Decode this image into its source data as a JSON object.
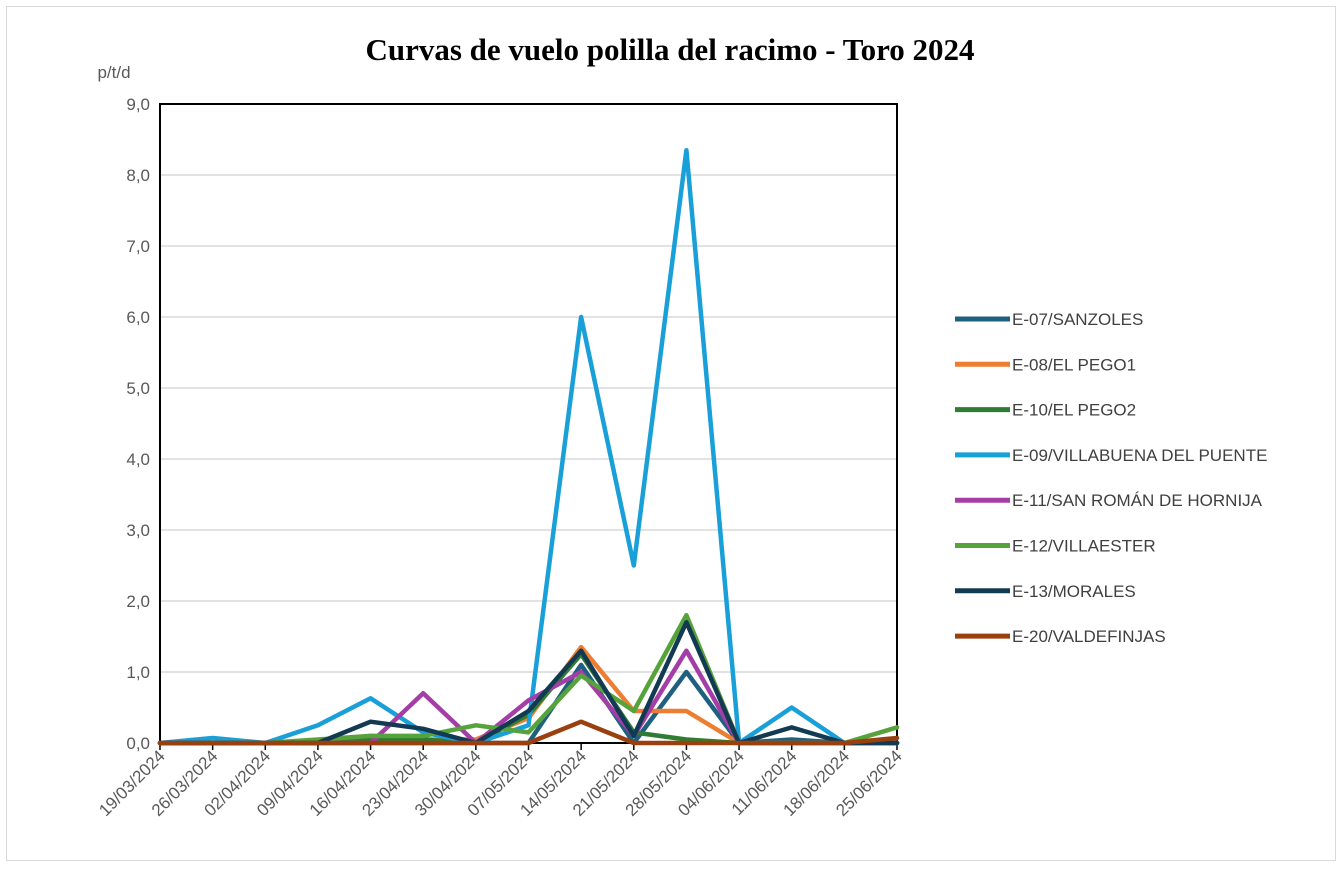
{
  "chart_data": {
    "type": "line",
    "title": "Curvas de vuelo polilla del racimo - Toro 2024",
    "xlabel": "",
    "ylabel": "p/t/d",
    "ylim": [
      0,
      9
    ],
    "yticks": [
      "0,0",
      "1,0",
      "2,0",
      "3,0",
      "4,0",
      "5,0",
      "6,0",
      "7,0",
      "8,0",
      "9,0"
    ],
    "grid": true,
    "legend_position": "right",
    "categories": [
      "19/03/2024",
      "26/03/2024",
      "02/04/2024",
      "09/04/2024",
      "16/04/2024",
      "23/04/2024",
      "30/04/2024",
      "07/05/2024",
      "14/05/2024",
      "21/05/2024",
      "28/05/2024",
      "04/06/2024",
      "11/06/2024",
      "18/06/2024",
      "25/06/2024"
    ],
    "series": [
      {
        "name": "E-07/SANZOLES",
        "color": "#1f5f7f",
        "values": [
          0,
          0,
          0,
          0,
          0,
          0,
          0,
          0,
          1.1,
          0,
          1.0,
          0,
          0.05,
          0,
          0
        ]
      },
      {
        "name": "E-08/EL PEGO1",
        "color": "#ed7d31",
        "values": [
          0,
          0,
          0,
          0,
          0.1,
          0.05,
          0.05,
          0.35,
          1.35,
          0.45,
          0.45,
          0,
          0,
          0,
          0
        ]
      },
      {
        "name": "E-10/EL PEGO2",
        "color": "#2e7d32",
        "values": [
          0,
          0,
          0,
          0,
          0.05,
          0.05,
          0,
          0.4,
          1.25,
          0.15,
          0.05,
          0,
          0,
          0,
          0
        ]
      },
      {
        "name": "E-09/VILLABUENA DEL PUENTE",
        "color": "#1aa0d8",
        "values": [
          0,
          0.07,
          0,
          0.25,
          0.63,
          0.15,
          0,
          0.25,
          6.0,
          2.5,
          8.35,
          0,
          0.5,
          0,
          0
        ]
      },
      {
        "name": "E-11/SAN ROMÁN DE HORNIJA",
        "color": "#a43ea6",
        "values": [
          0,
          0,
          0,
          0,
          0,
          0.7,
          0,
          0.6,
          1.0,
          0.1,
          1.3,
          0,
          0,
          0,
          0
        ]
      },
      {
        "name": "E-12/VILLAESTER",
        "color": "#57a33b",
        "values": [
          0,
          0,
          0,
          0.05,
          0.1,
          0.1,
          0.25,
          0.15,
          0.95,
          0.45,
          1.8,
          0,
          0,
          0,
          0.22
        ]
      },
      {
        "name": "E-13/MORALES",
        "color": "#123a52",
        "values": [
          0,
          0,
          0,
          0,
          0.3,
          0.2,
          0,
          0.45,
          1.3,
          0.1,
          1.7,
          0,
          0.22,
          0,
          0
        ]
      },
      {
        "name": "E-20/VALDEFINJAS",
        "color": "#99400e",
        "values": [
          0,
          0,
          0,
          0,
          0,
          0,
          0,
          0,
          0.3,
          0,
          0,
          0,
          0,
          0,
          0.07
        ]
      }
    ]
  }
}
